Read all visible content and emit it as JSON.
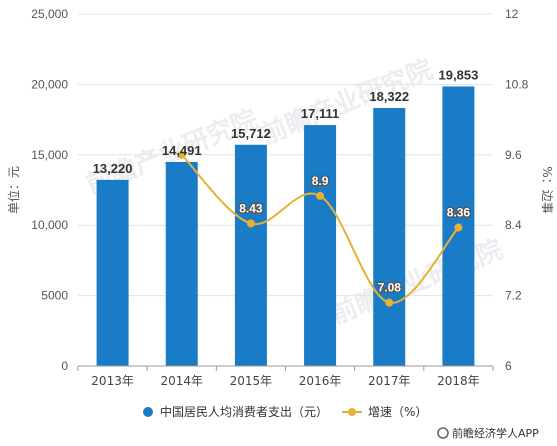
{
  "chart_data": {
    "type": "bar",
    "categories": [
      "2013年",
      "2014年",
      "2015年",
      "2016年",
      "2017年",
      "2018年"
    ],
    "series": [
      {
        "name": "中国居民人均消费者支出（元）",
        "type": "bar",
        "axis": "left",
        "values": [
          13220,
          14491,
          15712,
          17111,
          18322,
          19853
        ],
        "labels": [
          "13,220",
          "14,491",
          "15,712",
          "17,111",
          "18,322",
          "19,853"
        ]
      },
      {
        "name": "增速（%）",
        "type": "line",
        "axis": "right",
        "values": [
          null,
          9.6,
          8.43,
          8.9,
          7.08,
          8.36
        ],
        "labels": [
          "",
          "",
          "8.43",
          "8.9",
          "7.08",
          "8.36"
        ]
      }
    ],
    "ylabel": "单位：元",
    "y2label": "%：边事",
    "ylim": [
      0,
      25000
    ],
    "y2lim": [
      6,
      12
    ],
    "yticks": [
      "0",
      "5000",
      "10,000",
      "15,000",
      "20,000",
      "25,000"
    ],
    "y2ticks": [
      "6",
      "7.2",
      "8.4",
      "9.6",
      "10.8",
      "12"
    ],
    "grid": true,
    "legend_position": "bottom",
    "colors": {
      "bar": "#1a7cc7",
      "line": "#e8b134"
    }
  },
  "watermark": "前瞻产业研究院",
  "footer": {
    "brand": "前瞻经济学人APP"
  }
}
